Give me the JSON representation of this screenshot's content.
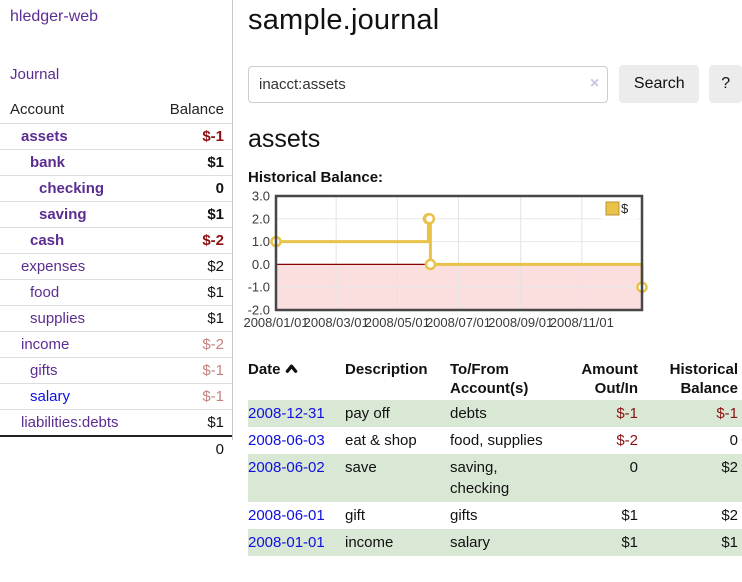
{
  "app": {
    "brand": "hledger-web",
    "nav_journal": "Journal"
  },
  "sidebar": {
    "columns": {
      "account": "Account",
      "balance": "Balance"
    },
    "accounts": [
      {
        "name": "assets",
        "indent": 0,
        "bold": true,
        "balance": "$-1",
        "neg": "strong"
      },
      {
        "name": "bank",
        "indent": 1,
        "bold": true,
        "balance": "$1"
      },
      {
        "name": "checking",
        "indent": 2,
        "bold": true,
        "balance": "0"
      },
      {
        "name": "saving",
        "indent": 2,
        "bold": true,
        "balance": "$1"
      },
      {
        "name": "cash",
        "indent": 1,
        "bold": true,
        "balance": "$-2",
        "neg": "strong"
      },
      {
        "name": "expenses",
        "indent": 0,
        "bold": false,
        "balance": "$2"
      },
      {
        "name": "food",
        "indent": 1,
        "bold": false,
        "balance": "$1"
      },
      {
        "name": "supplies",
        "indent": 1,
        "bold": false,
        "balance": "$1"
      },
      {
        "name": "income",
        "indent": 0,
        "bold": false,
        "balance": "$-2",
        "neg": "soft"
      },
      {
        "name": "gifts",
        "indent": 1,
        "bold": false,
        "balance": "$-1",
        "neg": "soft"
      },
      {
        "name": "salary",
        "indent": 1,
        "bold": false,
        "balance": "$-1",
        "neg": "soft",
        "link": "blue"
      },
      {
        "name": "liabilities:debts",
        "indent": 0,
        "bold": false,
        "balance": "$1"
      }
    ],
    "total": "0"
  },
  "main": {
    "title": "sample.journal",
    "search": {
      "value": "inacct:assets",
      "clear_label": "×",
      "button_label": "Search",
      "help_label": "?"
    },
    "account_heading": "assets",
    "chart_label": "Historical Balance:"
  },
  "chart_data": {
    "type": "line",
    "step": true,
    "title": "Historical Balance:",
    "legend": "$",
    "legend_position": "top-right",
    "grid": true,
    "x_range": [
      "2008-01-01",
      "2008-12-31"
    ],
    "ylim": [
      -2.0,
      3.0
    ],
    "y_ticks": [
      3.0,
      2.0,
      1.0,
      0.0,
      -1.0,
      -2.0
    ],
    "x_tick_dates": [
      "2008-01-01",
      "2008-03-01",
      "2008-05-01",
      "2008-07-01",
      "2008-09-01",
      "2008-11-01"
    ],
    "x_ticks": [
      "2008/01/01",
      "2008/03/01",
      "2008/05/01",
      "2008/07/01",
      "2008/09/01",
      "2008/11/01"
    ],
    "series": [
      {
        "name": "$",
        "color": "#e9c24a",
        "points": [
          [
            "2008-01-01",
            1
          ],
          [
            "2008-06-01",
            2
          ],
          [
            "2008-06-02",
            2
          ],
          [
            "2008-06-03",
            0
          ],
          [
            "2008-12-31",
            -1
          ]
        ]
      }
    ],
    "negative_region_fill": "#fbdede",
    "zero_line_color": "#8b0000"
  },
  "table": {
    "headers": {
      "date": "Date",
      "description": "Description",
      "tofrom_line1": "To/From",
      "tofrom_line2": "Account(s)",
      "amount_line1": "Amount",
      "amount_line2": "Out/In",
      "balance_line1": "Historical",
      "balance_line2": "Balance"
    },
    "sort": "ascending",
    "rows": [
      {
        "date": "2008-12-31",
        "description": "pay off",
        "accounts": "debts",
        "amount": "$-1",
        "amount_neg": true,
        "balance": "$-1",
        "balance_neg": true,
        "shaded": true
      },
      {
        "date": "2008-06-03",
        "description": "eat & shop",
        "accounts": "food, supplies",
        "amount": "$-2",
        "amount_neg": true,
        "balance": "0",
        "balance_neg": false,
        "shaded": false
      },
      {
        "date": "2008-06-02",
        "description": "save",
        "accounts": "saving, checking",
        "amount": "0",
        "amount_neg": false,
        "balance": "$2",
        "balance_neg": false,
        "shaded": true
      },
      {
        "date": "2008-06-01",
        "description": "gift",
        "accounts": "gifts",
        "amount": "$1",
        "amount_neg": false,
        "balance": "$2",
        "balance_neg": false,
        "shaded": false
      },
      {
        "date": "2008-01-01",
        "description": "income",
        "accounts": "salary",
        "amount": "$1",
        "amount_neg": false,
        "balance": "$1",
        "balance_neg": false,
        "shaded": true
      }
    ]
  },
  "colors": {
    "purple": "#5c2d91",
    "blue": "#0f0fe0",
    "neg_strong": "#8b1212",
    "neg_soft": "#c4827f",
    "row_green": "#d9e8d4",
    "gold": "#e9c24a",
    "gold_dark": "#bd9430",
    "pink": "#fbdede",
    "zero_red": "#8b0000",
    "grid": "#e4e4e4",
    "btn_bg": "#ececec",
    "border_light": "#dddddd"
  }
}
